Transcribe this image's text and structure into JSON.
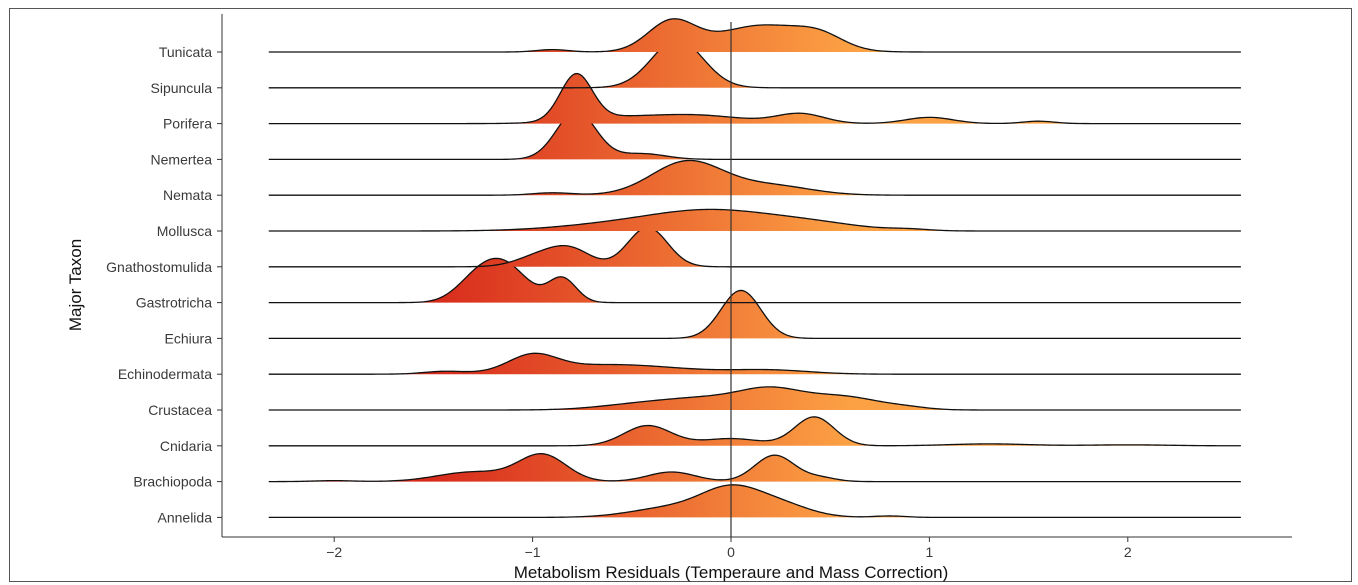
{
  "chart_data": {
    "type": "ridgeline",
    "xlabel": "Metabolism Residuals (Temperaure and Mass Correction)",
    "ylabel": "Major  Taxon",
    "xlim": [
      -2.5,
      2.6
    ],
    "x_ticks": [
      -2,
      -1,
      0,
      1,
      2
    ],
    "x_tick_labels": [
      "−2",
      "−1",
      "0",
      "1",
      "2"
    ],
    "reference_line_x": 0,
    "line_range": [
      -2.33,
      2.57
    ],
    "fill_gradient": {
      "low_value": -1.5,
      "high_value": 0.6,
      "low_color": "#d82b1c",
      "high_color": "#fca144"
    },
    "categories": [
      "Tunicata",
      "Sipuncula",
      "Porifera",
      "Nemertea",
      "Nemata",
      "Mollusca",
      "Gnathostomulida",
      "Gastrotricha",
      "Echiura",
      "Echinodermata",
      "Crustacea",
      "Cnidaria",
      "Brachiopoda",
      "Annelida"
    ],
    "series": [
      {
        "name": "Tunicata",
        "components": [
          [
            -0.9,
            0.08,
            0.05
          ],
          [
            -0.3,
            0.12,
            0.62
          ],
          [
            0.15,
            0.22,
            0.55
          ],
          [
            0.45,
            0.12,
            0.25
          ]
        ]
      },
      {
        "name": "Sipuncula",
        "components": [
          [
            -0.27,
            0.13,
            1.0
          ]
        ]
      },
      {
        "name": "Porifera",
        "components": [
          [
            -0.78,
            0.08,
            0.95
          ],
          [
            -0.65,
            0.2,
            0.1
          ],
          [
            -0.2,
            0.25,
            0.18
          ],
          [
            0.35,
            0.12,
            0.2
          ],
          [
            1.0,
            0.12,
            0.13
          ],
          [
            1.55,
            0.08,
            0.05
          ]
        ]
      },
      {
        "name": "Nemertea",
        "components": [
          [
            -0.78,
            0.1,
            1.0
          ],
          [
            -0.45,
            0.12,
            0.12
          ]
        ]
      },
      {
        "name": "Nemata",
        "components": [
          [
            -0.9,
            0.1,
            0.05
          ],
          [
            -0.22,
            0.18,
            0.7
          ],
          [
            0.2,
            0.2,
            0.2
          ]
        ]
      },
      {
        "name": "Mollusca",
        "components": [
          [
            -0.6,
            0.3,
            0.12
          ],
          [
            -0.1,
            0.3,
            0.4
          ],
          [
            0.4,
            0.25,
            0.15
          ],
          [
            0.9,
            0.1,
            0.03
          ]
        ]
      },
      {
        "name": "Gnathostomulida",
        "components": [
          [
            -0.95,
            0.12,
            0.25
          ],
          [
            -0.8,
            0.1,
            0.3
          ],
          [
            -0.42,
            0.1,
            0.82
          ]
        ]
      },
      {
        "name": "Gastrotricha",
        "components": [
          [
            -1.15,
            0.12,
            0.8
          ],
          [
            -0.85,
            0.07,
            0.5
          ],
          [
            -1.3,
            0.1,
            0.3
          ]
        ]
      },
      {
        "name": "Echiura",
        "components": [
          [
            0.05,
            0.1,
            1.0
          ]
        ]
      },
      {
        "name": "Echinodermata",
        "components": [
          [
            -1.45,
            0.1,
            0.05
          ],
          [
            -1.0,
            0.12,
            0.33
          ],
          [
            -0.6,
            0.35,
            0.2
          ],
          [
            0.2,
            0.2,
            0.08
          ]
        ]
      },
      {
        "name": "Crustacea",
        "components": [
          [
            -0.5,
            0.2,
            0.08
          ],
          [
            -0.1,
            0.25,
            0.25
          ],
          [
            0.2,
            0.15,
            0.3
          ],
          [
            0.55,
            0.2,
            0.28
          ],
          [
            0.9,
            0.1,
            0.03
          ]
        ]
      },
      {
        "name": "Cnidaria",
        "components": [
          [
            -0.42,
            0.12,
            0.42
          ],
          [
            0.0,
            0.15,
            0.15
          ],
          [
            0.42,
            0.1,
            0.6
          ],
          [
            1.3,
            0.2,
            0.04
          ],
          [
            2.0,
            0.2,
            0.02
          ]
        ]
      },
      {
        "name": "Brachiopoda",
        "components": [
          [
            -2.0,
            0.1,
            0.02
          ],
          [
            -1.3,
            0.18,
            0.2
          ],
          [
            -0.95,
            0.12,
            0.55
          ],
          [
            -0.3,
            0.12,
            0.2
          ],
          [
            0.22,
            0.1,
            0.55
          ],
          [
            0.45,
            0.08,
            0.08
          ]
        ]
      },
      {
        "name": "Annelida",
        "components": [
          [
            -0.3,
            0.2,
            0.2
          ],
          [
            0.0,
            0.15,
            0.55
          ],
          [
            0.25,
            0.15,
            0.25
          ],
          [
            0.8,
            0.08,
            0.03
          ]
        ]
      }
    ]
  }
}
